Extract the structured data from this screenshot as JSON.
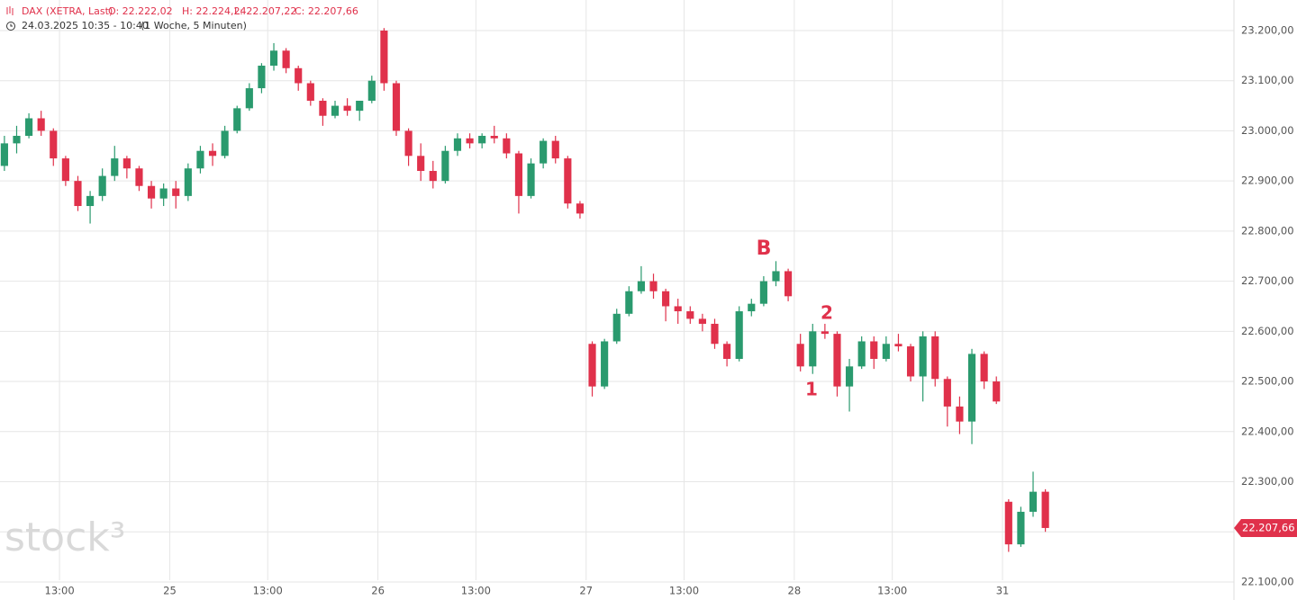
{
  "chart_data": {
    "type": "candlestick",
    "instrument": "DAX (XETRA, Last)",
    "ohlc_labels": [
      "O: 22.222,02",
      "H: 22.224,24",
      "L: 22.207,22",
      "C: 22.207,66"
    ],
    "period": "24.03.2025 10:35 - 10:40",
    "interval": "(1 Woche, 5 Minuten)",
    "last_label": "22.207,66",
    "watermark": "stock³",
    "annotations": [
      "B",
      "2",
      "1"
    ],
    "up_color": "#2a9a6e",
    "down_color": "#e0314b",
    "grid": true,
    "xlim": [
      3.14,
      103.9
    ],
    "xticks": [
      {
        "value": 8,
        "label": "13:00"
      },
      {
        "value": 17,
        "label": "25"
      },
      {
        "value": 25,
        "label": "13:00"
      },
      {
        "value": 34,
        "label": "26"
      },
      {
        "value": 42,
        "label": "13:00"
      },
      {
        "value": 51,
        "label": "27"
      },
      {
        "value": 59,
        "label": "13:00"
      },
      {
        "value": 68,
        "label": "28"
      },
      {
        "value": 76,
        "label": "13:00"
      },
      {
        "value": 85,
        "label": "31"
      }
    ],
    "ylim": [
      22064,
      23261
    ],
    "yticks": [
      {
        "value": 22100,
        "label": "22.100,00"
      },
      {
        "value": 22200,
        "label": "22.200,00"
      },
      {
        "value": 22300,
        "label": "22.300,00"
      },
      {
        "value": 22400,
        "label": "22.400,00"
      },
      {
        "value": 22500,
        "label": "22.500,00"
      },
      {
        "value": 22600,
        "label": "22.600,00"
      },
      {
        "value": 22700,
        "label": "22.700,00"
      },
      {
        "value": 22800,
        "label": "22.800,00"
      },
      {
        "value": 22900,
        "label": "22.900,00"
      },
      {
        "value": 23000,
        "label": "23.000,00"
      },
      {
        "value": 23100,
        "label": "23.100,00"
      },
      {
        "value": 23200,
        "label": "23.200,00"
      }
    ],
    "x": [
      3,
      4,
      5,
      6,
      7,
      8,
      9,
      10,
      11,
      12,
      13,
      14,
      15,
      16,
      17,
      18,
      19,
      20,
      21,
      22,
      23,
      24,
      25,
      26,
      27,
      28,
      29,
      30,
      31,
      32,
      33,
      34,
      35,
      36,
      37,
      38,
      39,
      40,
      41,
      42,
      43,
      44,
      45,
      46,
      47,
      48,
      49,
      50,
      51,
      52,
      53,
      54,
      55,
      56,
      57,
      58,
      59,
      60,
      61,
      62,
      63,
      64,
      65,
      66,
      67,
      68,
      69,
      70,
      71,
      72,
      73,
      74,
      75,
      76,
      77,
      78,
      79,
      80,
      81,
      82,
      83,
      84,
      85,
      86,
      87,
      88
    ],
    "candles": [
      [
        22930,
        22990,
        22920,
        22975
      ],
      [
        22975,
        23010,
        22955,
        22990
      ],
      [
        22990,
        23035,
        22985,
        23025
      ],
      [
        23025,
        23040,
        22990,
        23000
      ],
      [
        23000,
        23005,
        22930,
        22945
      ],
      [
        22945,
        22950,
        22890,
        22900
      ],
      [
        22900,
        22910,
        22840,
        22850
      ],
      [
        22850,
        22880,
        22815,
        22870
      ],
      [
        22870,
        22925,
        22860,
        22910
      ],
      [
        22910,
        22970,
        22900,
        22945
      ],
      [
        22945,
        22950,
        22905,
        22925
      ],
      [
        22925,
        22930,
        22880,
        22890
      ],
      [
        22890,
        22900,
        22845,
        22865
      ],
      [
        22865,
        22895,
        22850,
        22885
      ],
      [
        22885,
        22900,
        22845,
        22870
      ],
      [
        22870,
        22935,
        22860,
        22925
      ],
      [
        22925,
        22970,
        22915,
        22960
      ],
      [
        22960,
        22975,
        22930,
        22950
      ],
      [
        22950,
        23010,
        22945,
        23000
      ],
      [
        23000,
        23050,
        22995,
        23045
      ],
      [
        23045,
        23095,
        23040,
        23085
      ],
      [
        23085,
        23135,
        23075,
        23130
      ],
      [
        23130,
        23175,
        23120,
        23160
      ],
      [
        23160,
        23165,
        23115,
        23125
      ],
      [
        23125,
        23130,
        23080,
        23095
      ],
      [
        23095,
        23100,
        23050,
        23060
      ],
      [
        23060,
        23065,
        23010,
        23030
      ],
      [
        23030,
        23060,
        23025,
        23050
      ],
      [
        23050,
        23065,
        23030,
        23040
      ],
      [
        23040,
        23060,
        23020,
        23060
      ],
      [
        23060,
        23110,
        23055,
        23100
      ],
      [
        23200,
        23205,
        23080,
        23095
      ],
      [
        23095,
        23100,
        22990,
        23000
      ],
      [
        23000,
        23005,
        22930,
        22950
      ],
      [
        22950,
        22975,
        22900,
        22920
      ],
      [
        22920,
        22940,
        22885,
        22900
      ],
      [
        22900,
        22970,
        22895,
        22960
      ],
      [
        22960,
        22995,
        22950,
        22985
      ],
      [
        22985,
        22995,
        22965,
        22975
      ],
      [
        22975,
        22995,
        22965,
        22990
      ],
      [
        22990,
        23010,
        22975,
        22985
      ],
      [
        22985,
        22995,
        22945,
        22955
      ],
      [
        22955,
        22960,
        22835,
        22870
      ],
      [
        22870,
        22945,
        22865,
        22935
      ],
      [
        22935,
        22985,
        22925,
        22980
      ],
      [
        22980,
        22990,
        22935,
        22945
      ],
      [
        22945,
        22950,
        22845,
        22855
      ],
      [
        22855,
        22860,
        22825,
        22835
      ],
      [
        22575,
        22580,
        22470,
        22490
      ],
      [
        22490,
        22585,
        22485,
        22580
      ],
      [
        22580,
        22645,
        22575,
        22635
      ],
      [
        22635,
        22690,
        22630,
        22680
      ],
      [
        22680,
        22730,
        22675,
        22700
      ],
      [
        22700,
        22715,
        22665,
        22680
      ],
      [
        22680,
        22685,
        22620,
        22650
      ],
      [
        22650,
        22665,
        22615,
        22640
      ],
      [
        22640,
        22650,
        22615,
        22625
      ],
      [
        22625,
        22635,
        22600,
        22615
      ],
      [
        22615,
        22625,
        22565,
        22575
      ],
      [
        22575,
        22580,
        22530,
        22545
      ],
      [
        22545,
        22650,
        22540,
        22640
      ],
      [
        22640,
        22665,
        22630,
        22655
      ],
      [
        22655,
        22710,
        22650,
        22700
      ],
      [
        22700,
        22740,
        22690,
        22720
      ],
      [
        22720,
        22725,
        22660,
        22670
      ],
      [
        22575,
        22595,
        22520,
        22530
      ],
      [
        22530,
        22615,
        22515,
        22600
      ],
      [
        22600,
        22615,
        22585,
        22595
      ],
      [
        22595,
        22600,
        22470,
        22490
      ],
      [
        22490,
        22545,
        22440,
        22530
      ],
      [
        22530,
        22590,
        22525,
        22580
      ],
      [
        22580,
        22590,
        22525,
        22545
      ],
      [
        22545,
        22590,
        22540,
        22575
      ],
      [
        22575,
        22595,
        22560,
        22570
      ],
      [
        22570,
        22575,
        22500,
        22510
      ],
      [
        22510,
        22600,
        22460,
        22590
      ],
      [
        22590,
        22600,
        22490,
        22505
      ],
      [
        22505,
        22510,
        22410,
        22450
      ],
      [
        22450,
        22470,
        22395,
        22420
      ],
      [
        22420,
        22565,
        22375,
        22555
      ],
      [
        22555,
        22560,
        22485,
        22500
      ],
      [
        22500,
        22510,
        22455,
        22460
      ],
      [
        22260,
        22265,
        22160,
        22175
      ],
      [
        22175,
        22250,
        22170,
        22240
      ],
      [
        22240,
        22320,
        22230,
        22280
      ],
      [
        22280,
        22285,
        22200,
        22207.66
      ]
    ]
  }
}
